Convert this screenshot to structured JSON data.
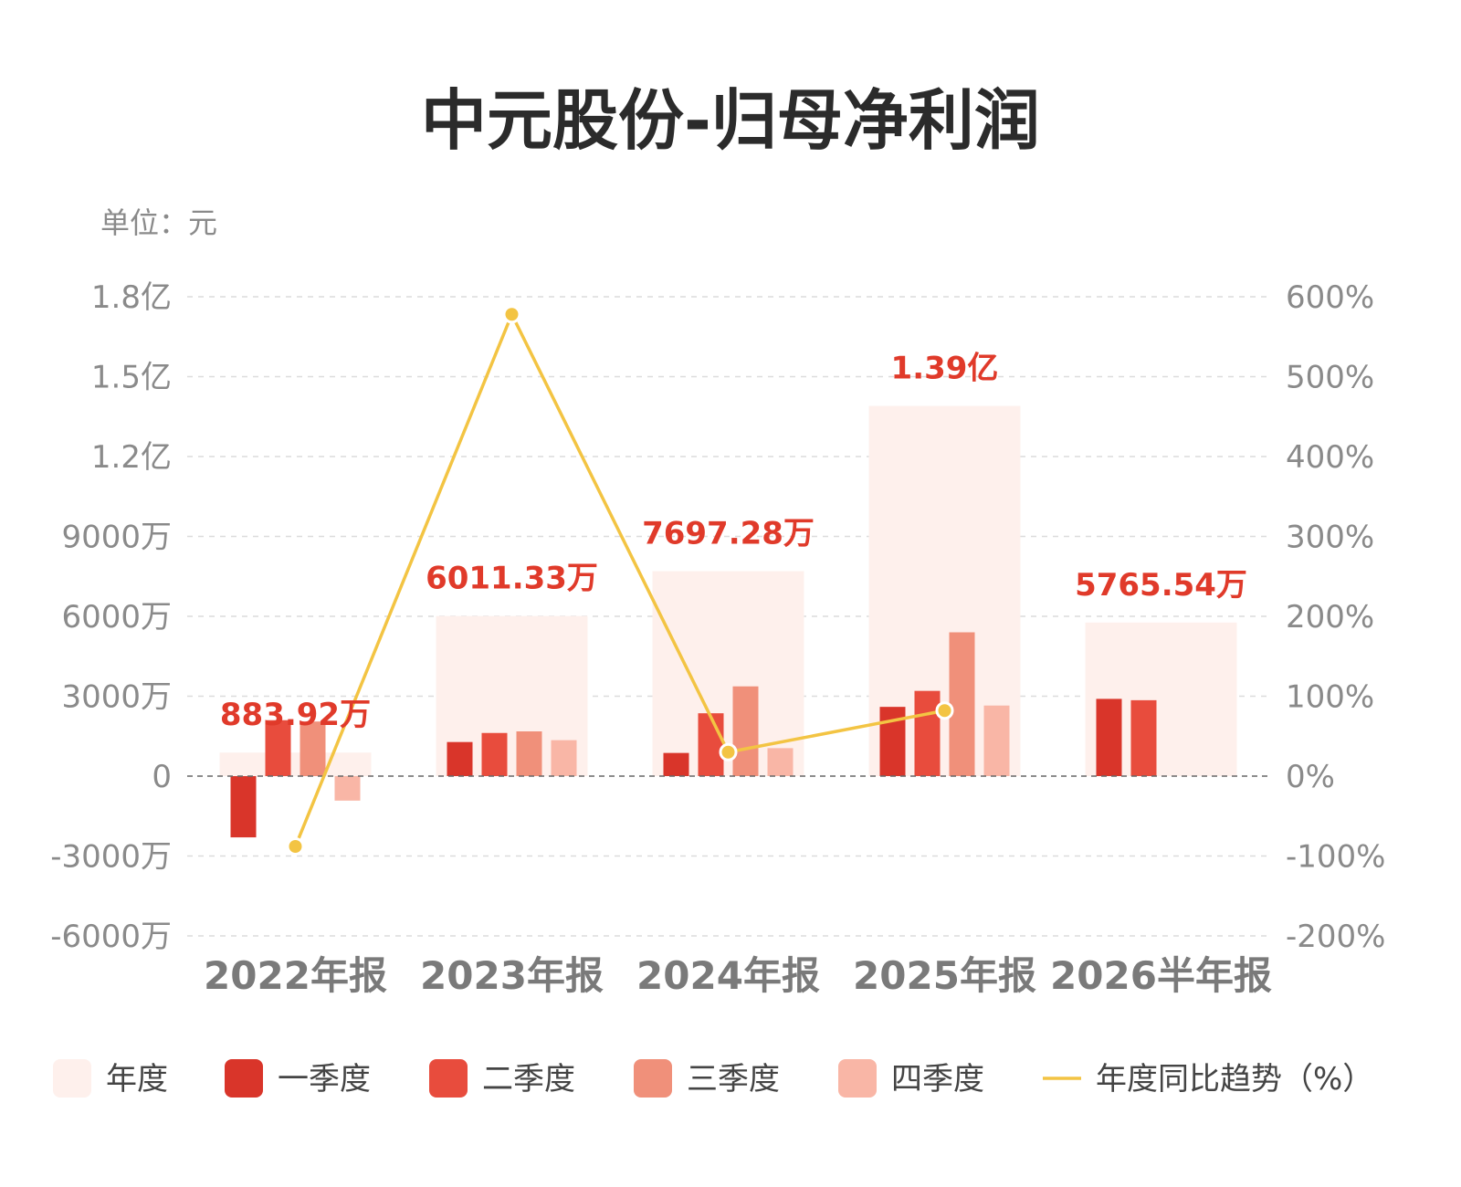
{
  "chart_data": {
    "type": "bar",
    "title": "中元股份-归母净利润",
    "unit_label": "单位：元",
    "categories": [
      "2022年报",
      "2023年报",
      "2024年报",
      "2025年报",
      "2026半年报"
    ],
    "annual": {
      "name": "年度",
      "values": [
        8839200,
        60113300,
        76972800,
        139000000,
        57655400
      ],
      "labels": [
        "883.92万",
        "6011.33万",
        "7697.28万",
        "1.39亿",
        "5765.54万"
      ]
    },
    "series": [
      {
        "name": "一季度",
        "values": [
          -23000000,
          12800000,
          8700000,
          26000000,
          29000000
        ]
      },
      {
        "name": "二季度",
        "values": [
          21000000,
          16200000,
          23600000,
          32000000,
          28500000
        ]
      },
      {
        "name": "三季度",
        "values": [
          20500000,
          16800000,
          33700000,
          54000000,
          null
        ]
      },
      {
        "name": "四季度",
        "values": [
          -9200000,
          13500000,
          10500000,
          26500000,
          null
        ]
      }
    ],
    "yoy": {
      "name": "年度同比趋势（%）",
      "values": [
        -88,
        578,
        30,
        82,
        null
      ]
    },
    "y_left": {
      "ylim": [
        -60000000,
        180000000
      ],
      "ticks": [
        -60000000,
        -30000000,
        0,
        30000000,
        60000000,
        90000000,
        120000000,
        150000000,
        180000000
      ],
      "tick_labels": [
        "-6000万",
        "-3000万",
        "0",
        "3000万",
        "6000万",
        "9000万",
        "1.2亿",
        "1.5亿",
        "1.8亿"
      ]
    },
    "y_right": {
      "ylim": [
        -200,
        600
      ],
      "ticks": [
        -200,
        -100,
        0,
        100,
        200,
        300,
        400,
        500,
        600
      ],
      "tick_labels": [
        "-200%",
        "-100%",
        "0%",
        "100%",
        "200%",
        "300%",
        "400%",
        "500%",
        "600%"
      ]
    },
    "grid": true,
    "legend_position": "bottom",
    "colors": {
      "annual": "#fef0ec",
      "q1": "#d9352a",
      "q2": "#e84c3d",
      "q3": "#f0907a",
      "q4": "#f9b6a6",
      "yoy": "#f3c443",
      "total_label": "#e03a2a"
    },
    "legend": [
      "年度",
      "一季度",
      "二季度",
      "三季度",
      "四季度",
      "年度同比趋势（%）"
    ]
  }
}
